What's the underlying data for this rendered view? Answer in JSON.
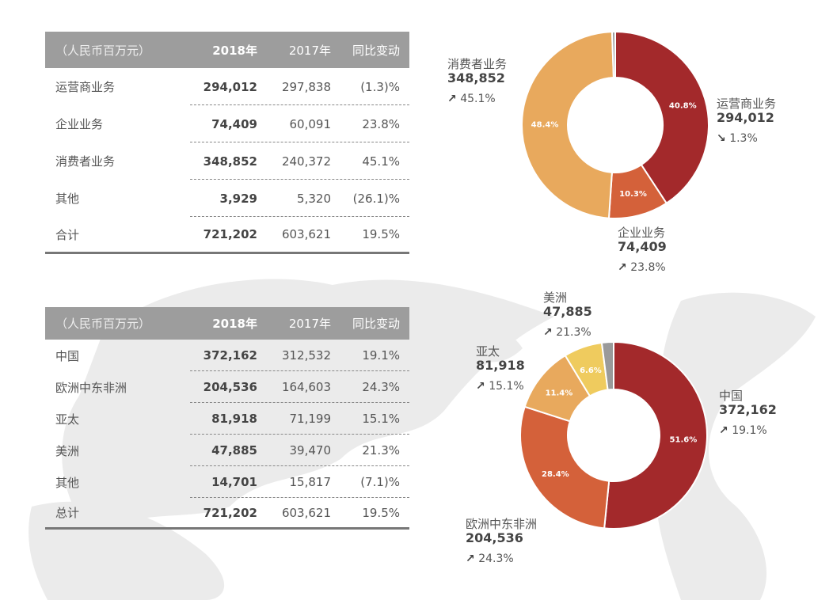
{
  "segment_table": {
    "headers": [
      "（人民币百万元）",
      "2018年",
      "2017年",
      "同比变动"
    ],
    "rows": [
      [
        "运营商业务",
        "294,012",
        "297,838",
        "(1.3)%"
      ],
      [
        "企业业务",
        "74,409",
        "60,091",
        "23.8%"
      ],
      [
        "消费者业务",
        "348,852",
        "240,372",
        "45.1%"
      ],
      [
        "其他",
        "3,929",
        "5,320",
        "(26.1)%"
      ],
      [
        "合计",
        "721,202",
        "603,621",
        "19.5%"
      ]
    ]
  },
  "region_table": {
    "headers": [
      "（人民币百万元）",
      "2018年",
      "2017年",
      "同比变动"
    ],
    "rows": [
      [
        "中国",
        "372,162",
        "312,532",
        "19.1%"
      ],
      [
        "欧洲中东非洲",
        "204,536",
        "164,603",
        "24.3%"
      ],
      [
        "亚太",
        "81,918",
        "71,199",
        "15.1%"
      ],
      [
        "美洲",
        "47,885",
        "39,470",
        "21.3%"
      ],
      [
        "其他",
        "14,701",
        "15,817",
        "(7.1)%"
      ],
      [
        "总计",
        "721,202",
        "603,621",
        "19.5%"
      ]
    ]
  },
  "chart_data": [
    {
      "type": "pie",
      "donut": true,
      "slices": [
        {
          "name": "运营商业务",
          "value": 294012,
          "percent": 40.8,
          "pct_label": "40.8%",
          "growth": "1.3%",
          "trend": "down",
          "color": "#a3292b"
        },
        {
          "name": "企业业务",
          "value": 74409,
          "percent": 10.3,
          "pct_label": "10.3%",
          "growth": "23.8%",
          "trend": "up",
          "color": "#d4613a"
        },
        {
          "name": "消费者业务",
          "value": 348852,
          "percent": 48.4,
          "pct_label": "48.4%",
          "growth": "45.1%",
          "trend": "up",
          "color": "#e8a95d"
        },
        {
          "name": "其他",
          "value": 3929,
          "percent": 0.5,
          "color": "#9a9a9a"
        }
      ],
      "value_labels": [
        "294,012",
        "74,409",
        "348,852"
      ]
    },
    {
      "type": "pie",
      "donut": true,
      "slices": [
        {
          "name": "中国",
          "value": 372162,
          "percent": 51.6,
          "pct_label": "51.6%",
          "growth": "19.1%",
          "trend": "up",
          "color": "#a3292b"
        },
        {
          "name": "欧洲中东非洲",
          "value": 204536,
          "percent": 28.4,
          "pct_label": "28.4%",
          "growth": "24.3%",
          "trend": "up",
          "color": "#d4613a"
        },
        {
          "name": "亚太",
          "value": 81918,
          "percent": 11.4,
          "pct_label": "11.4%",
          "growth": "15.1%",
          "trend": "up",
          "color": "#e8a95d"
        },
        {
          "name": "美洲",
          "value": 47885,
          "percent": 6.6,
          "pct_label": "6.6%",
          "growth": "21.3%",
          "trend": "up",
          "color": "#efcb5e"
        },
        {
          "name": "其他",
          "value": 14701,
          "percent": 2.0,
          "color": "#9a9a9a"
        }
      ],
      "value_labels": [
        "372,162",
        "204,536",
        "81,918",
        "47,885"
      ]
    }
  ]
}
